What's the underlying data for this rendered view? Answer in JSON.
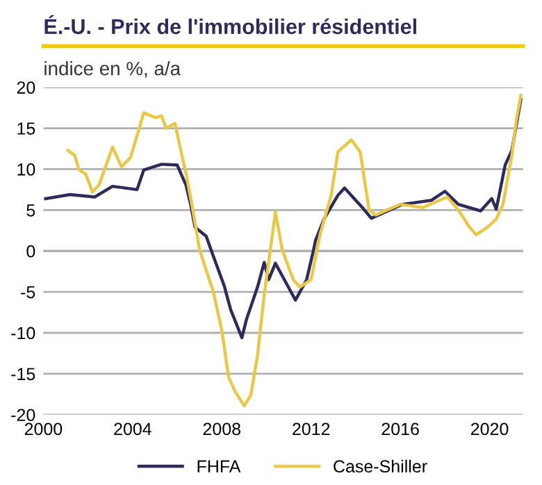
{
  "chart_data": {
    "type": "line",
    "title": "É.-U. - Prix de l'immobilier résidentiel",
    "subtitle": "indice en %, a/a",
    "series": [
      {
        "name": "FHFA",
        "color": "#2e2a5a",
        "x": [
          2000.1,
          2001.2,
          2002.3,
          2003.1,
          2004.2,
          2004.5,
          2005.3,
          2006.0,
          2006.4,
          2006.6,
          2006.8,
          2007.3,
          2007.6,
          2008.1,
          2008.4,
          2008.9,
          2009.1,
          2009.6,
          2009.9,
          2010.1,
          2010.4,
          2010.7,
          2011.3,
          2011.8,
          2012.1,
          2012.2,
          2012.6,
          2013.2,
          2013.5,
          2014.3,
          2014.7,
          2016.1,
          2017.4,
          2018.0,
          2018.6,
          2019.6,
          2020.1,
          2020.3,
          2020.7,
          2021.0,
          2021.4
        ],
        "values": [
          6.4,
          6.9,
          6.6,
          7.9,
          7.5,
          9.9,
          10.6,
          10.5,
          8,
          5.7,
          2.9,
          1.8,
          -0.5,
          -4.2,
          -7.2,
          -10.6,
          -8.4,
          -4.4,
          -1.4,
          -3.5,
          -1.5,
          -3,
          -6,
          -3.5,
          0,
          1.3,
          4,
          6.8,
          7.7,
          5.3,
          4,
          5.7,
          6.2,
          7.3,
          5.7,
          4.9,
          6.4,
          5.1,
          10.5,
          12.3,
          18.5
        ]
      },
      {
        "name": "Case-Shiller",
        "color": "#e8c84a",
        "x": [
          2001.1,
          2001.4,
          2001.6,
          2001.9,
          2002.2,
          2002.5,
          2003.1,
          2003.5,
          2003.9,
          2004.2,
          2004.5,
          2005.0,
          2005.3,
          2005.5,
          2005.9,
          2006.1,
          2006.4,
          2006.7,
          2007.0,
          2007.3,
          2007.6,
          2008.0,
          2008.3,
          2008.6,
          2009.0,
          2009.3,
          2009.6,
          2009.9,
          2010.2,
          2010.4,
          2010.7,
          2011.2,
          2011.5,
          2012.0,
          2012.4,
          2012.9,
          2013.2,
          2013.8,
          2014.2,
          2014.6,
          2014.9,
          2016.0,
          2017.0,
          2018.1,
          2018.6,
          2019.1,
          2019.4,
          2019.9,
          2020.3,
          2020.6,
          2021.0,
          2021.2,
          2021.4
        ],
        "values": [
          12.3,
          11.7,
          9.9,
          9.4,
          7.2,
          8.1,
          12.7,
          10.3,
          11.4,
          14.1,
          16.9,
          16.3,
          16.5,
          15,
          15.6,
          13,
          9.4,
          5,
          0.2,
          -2.4,
          -4.8,
          -9.7,
          -15.4,
          -17.2,
          -18.9,
          -17.6,
          -12.7,
          -5.3,
          0.7,
          4.8,
          0.2,
          -3.5,
          -4.4,
          -3.5,
          2,
          6.8,
          12.1,
          13.6,
          12.1,
          5,
          4.4,
          5.7,
          5.3,
          6.6,
          5,
          2.9,
          2,
          2.9,
          3.9,
          5.7,
          11.7,
          16,
          19
        ]
      }
    ],
    "xlim": [
      2000,
      2021.5
    ],
    "xticks": [
      2000,
      2004,
      2008,
      2012,
      2016,
      2020
    ],
    "ylim": [
      -20,
      20
    ],
    "yticks": [
      -20,
      -15,
      -10,
      -5,
      0,
      5,
      10,
      15,
      20
    ],
    "grid": "y",
    "legend": "bottom",
    "marker": "none",
    "line_style": "solid"
  }
}
